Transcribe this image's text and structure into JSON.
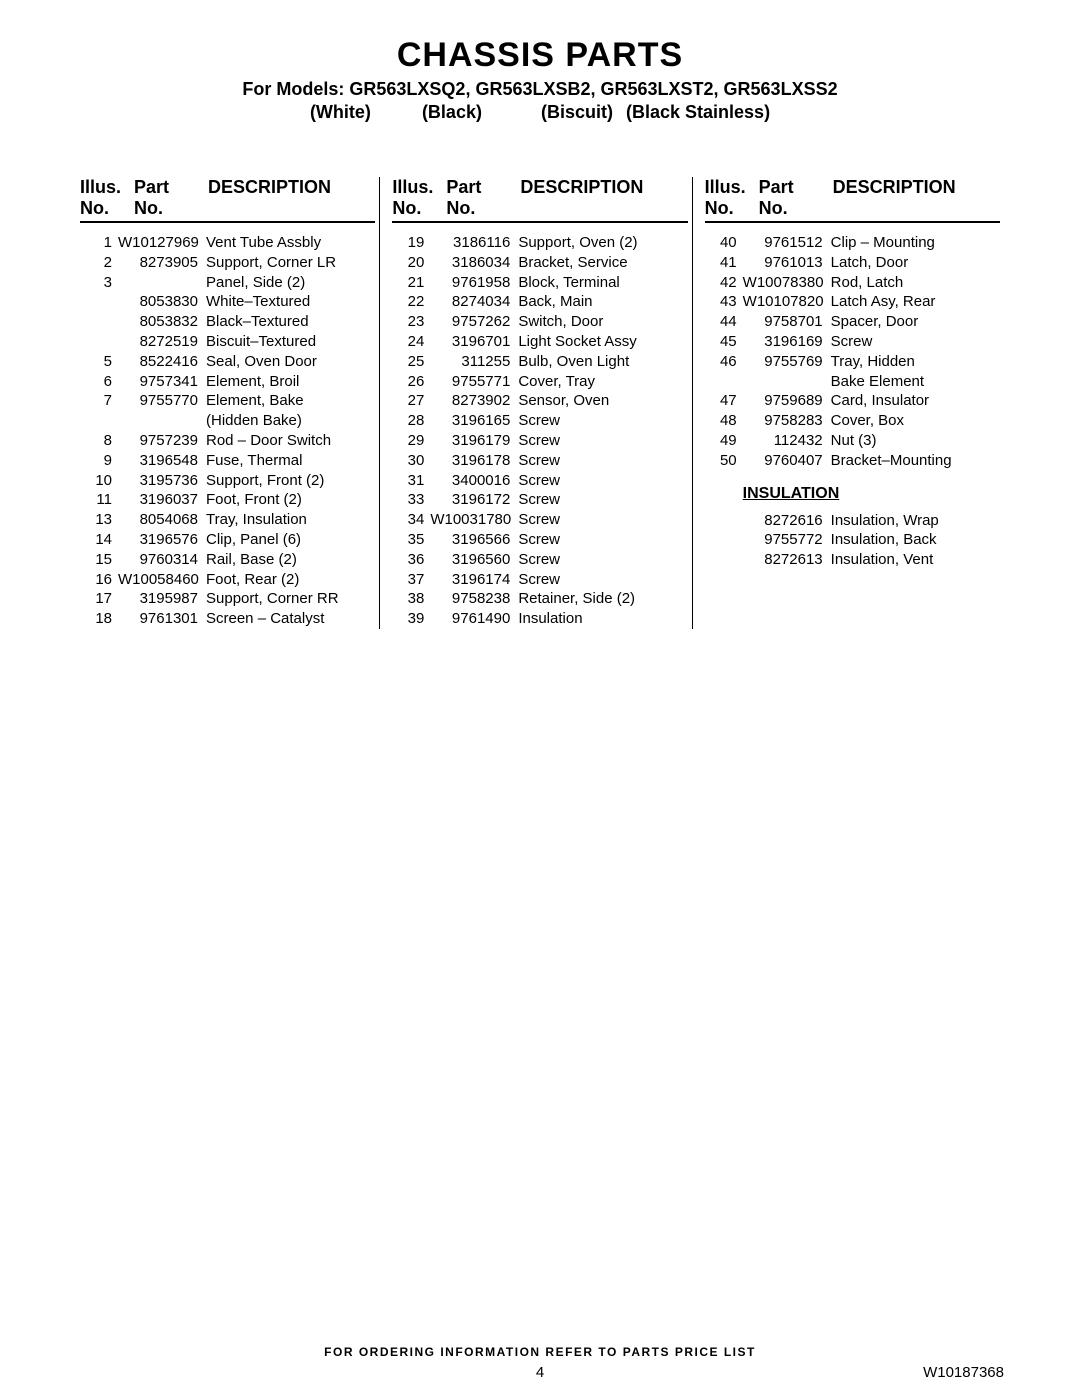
{
  "title": "CHASSIS PARTS",
  "models_line": "For Models: GR563LXSQ2, GR563LXSB2, GR563LXST2, GR563LXSS2",
  "color_labels": [
    "(White)",
    "(Black)",
    "(Biscuit)",
    "(Black Stainless)"
  ],
  "headers": {
    "illus": "Illus.\nNo.",
    "part": "Part\nNo.",
    "desc": "DESCRIPTION"
  },
  "col1": [
    {
      "illus": "1",
      "part": "W10127969",
      "desc": "Vent Tube Assbly"
    },
    {
      "illus": "2",
      "part": "8273905",
      "desc": "Support, Corner LR"
    },
    {
      "illus": "3",
      "part": "",
      "desc": "Panel, Side (2)"
    },
    {
      "illus": "",
      "part": "8053830",
      "desc": "White–Textured"
    },
    {
      "illus": "",
      "part": "8053832",
      "desc": "Black–Textured"
    },
    {
      "illus": "",
      "part": "8272519",
      "desc": "Biscuit–Textured"
    },
    {
      "illus": "5",
      "part": "8522416",
      "desc": "Seal, Oven Door"
    },
    {
      "illus": "6",
      "part": "9757341",
      "desc": "Element, Broil"
    },
    {
      "illus": "7",
      "part": "9755770",
      "desc": "Element, Bake"
    },
    {
      "illus": "",
      "part": "",
      "desc": "(Hidden Bake)"
    },
    {
      "illus": "8",
      "part": "9757239",
      "desc": "Rod – Door Switch"
    },
    {
      "illus": "9",
      "part": "3196548",
      "desc": "Fuse, Thermal"
    },
    {
      "illus": "10",
      "part": "3195736",
      "desc": "Support, Front (2)"
    },
    {
      "illus": "11",
      "part": "3196037",
      "desc": "Foot, Front (2)"
    },
    {
      "illus": "13",
      "part": "8054068",
      "desc": "Tray, Insulation"
    },
    {
      "illus": "14",
      "part": "3196576",
      "desc": "Clip, Panel (6)"
    },
    {
      "illus": "15",
      "part": "9760314",
      "desc": "Rail, Base (2)"
    },
    {
      "illus": "16",
      "part": "W10058460",
      "desc": "Foot, Rear (2)"
    },
    {
      "illus": "17",
      "part": "3195987",
      "desc": "Support, Corner RR"
    },
    {
      "illus": "18",
      "part": "9761301",
      "desc": "Screen – Catalyst"
    }
  ],
  "col2": [
    {
      "illus": "19",
      "part": "3186116",
      "desc": "Support, Oven (2)"
    },
    {
      "illus": "20",
      "part": "3186034",
      "desc": "Bracket, Service"
    },
    {
      "illus": "21",
      "part": "9761958",
      "desc": "Block, Terminal"
    },
    {
      "illus": "22",
      "part": "8274034",
      "desc": "Back, Main"
    },
    {
      "illus": "23",
      "part": "9757262",
      "desc": "Switch, Door"
    },
    {
      "illus": "24",
      "part": "3196701",
      "desc": "Light Socket Assy"
    },
    {
      "illus": "25",
      "part": "311255",
      "desc": "Bulb, Oven Light"
    },
    {
      "illus": "26",
      "part": "9755771",
      "desc": "Cover, Tray"
    },
    {
      "illus": "27",
      "part": "8273902",
      "desc": "Sensor, Oven"
    },
    {
      "illus": "28",
      "part": "3196165",
      "desc": "Screw"
    },
    {
      "illus": "29",
      "part": "3196179",
      "desc": "Screw"
    },
    {
      "illus": "30",
      "part": "3196178",
      "desc": "Screw"
    },
    {
      "illus": "31",
      "part": "3400016",
      "desc": "Screw"
    },
    {
      "illus": "33",
      "part": "3196172",
      "desc": "Screw"
    },
    {
      "illus": "34",
      "part": "W10031780",
      "desc": "Screw"
    },
    {
      "illus": "35",
      "part": "3196566",
      "desc": "Screw"
    },
    {
      "illus": "36",
      "part": "3196560",
      "desc": "Screw"
    },
    {
      "illus": "37",
      "part": "3196174",
      "desc": "Screw"
    },
    {
      "illus": "38",
      "part": "9758238",
      "desc": "Retainer, Side (2)"
    },
    {
      "illus": "39",
      "part": "9761490",
      "desc": "Insulation"
    }
  ],
  "col3": [
    {
      "illus": "40",
      "part": "9761512",
      "desc": "Clip – Mounting"
    },
    {
      "illus": "41",
      "part": "9761013",
      "desc": "Latch, Door"
    },
    {
      "illus": "42",
      "part": "W10078380",
      "desc": "Rod, Latch"
    },
    {
      "illus": "43",
      "part": "W10107820",
      "desc": "Latch Asy, Rear"
    },
    {
      "illus": "44",
      "part": "9758701",
      "desc": "Spacer, Door"
    },
    {
      "illus": "45",
      "part": "3196169",
      "desc": "Screw"
    },
    {
      "illus": "46",
      "part": "9755769",
      "desc": "Tray, Hidden"
    },
    {
      "illus": "",
      "part": "",
      "desc": "Bake Element"
    },
    {
      "illus": "47",
      "part": "9759689",
      "desc": "Card, Insulator"
    },
    {
      "illus": "48",
      "part": "9758283",
      "desc": "Cover, Box"
    },
    {
      "illus": "49",
      "part": "112432",
      "desc": "Nut (3)"
    },
    {
      "illus": "50",
      "part": "9760407",
      "desc": "Bracket–Mounting"
    }
  ],
  "col3_section_heading": "INSULATION",
  "col3_insulation": [
    {
      "illus": "",
      "part": "8272616",
      "desc": "Insulation, Wrap"
    },
    {
      "illus": "",
      "part": "9755772",
      "desc": "Insulation, Back"
    },
    {
      "illus": "",
      "part": "8272613",
      "desc": "Insulation, Vent"
    }
  ],
  "footer": "FOR ORDERING INFORMATION REFER TO PARTS PRICE LIST",
  "page_number": "4",
  "doc_id": "W10187368"
}
